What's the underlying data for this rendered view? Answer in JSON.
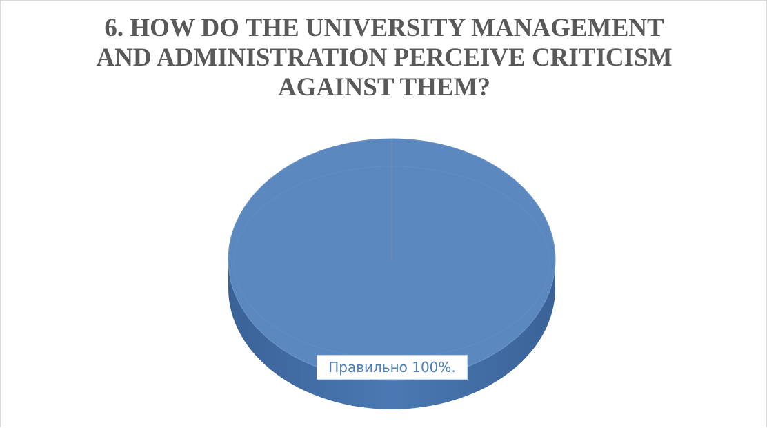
{
  "chart_data": {
    "type": "pie",
    "title_lines": [
      "6. HOW DO THE UNIVERSITY MANAGEMENT",
      "AND ADMINISTRATION PERCEIVE CRITICISM",
      "AGAINST THEM?"
    ],
    "slices": [
      {
        "label": "Правильно",
        "value": 100,
        "data_label": "Правильно 100%."
      }
    ],
    "style": "3d",
    "colors": {
      "slice_top": "#5b88bf",
      "slice_side": "#3f6ea6",
      "label_text": "#4f7fba",
      "title_text": "#595959"
    }
  }
}
